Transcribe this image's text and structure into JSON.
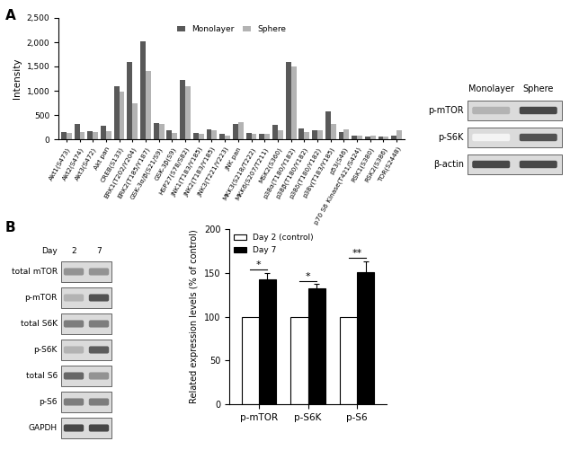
{
  "panel_labels": [
    "A",
    "B"
  ],
  "chart_data": [
    {
      "type": "bar",
      "y_label": "Intensity",
      "categories": [
        "Akt1(S473)",
        "Akt2(S474)",
        "Akt3(S472)",
        "Akt pan",
        "CREB(S133)",
        "ERK1(T202/Y204)",
        "ERK2(T185/Y187)",
        "GSK-3α/β(S21/S9)",
        "GSK-3β(S9)",
        "HSP27(S78/S82)",
        "JNK1(T183/Y185)",
        "JNK2(T183/Y185)",
        "JNK3(T221/Y223)",
        "JNK pan",
        "MKK3(S218/T222)",
        "MKK6(S207/T211)",
        "MSK2(S360)",
        "p38α(T180/Y182)",
        "p38β(T180/Y182)",
        "p38δ(T180/Y182)",
        "p38γ(T183/Y185)",
        "p53(S46)",
        "p70 S6 Kinase(T421/S424)",
        "RSK1(S380)",
        "RSK2(S386)",
        "TOR(S2448)"
      ],
      "series": [
        {
          "name": "Monolayer",
          "color": "#595959",
          "values": [
            150,
            320,
            170,
            280,
            1100,
            1600,
            2010,
            330,
            190,
            1230,
            130,
            200,
            120,
            320,
            130,
            120,
            290,
            1600,
            220,
            190,
            570,
            150,
            80,
            60,
            60,
            80
          ]
        },
        {
          "name": "Sphere",
          "color": "#b3b3b3",
          "values": [
            130,
            150,
            150,
            170,
            980,
            740,
            1410,
            310,
            130,
            1090,
            120,
            180,
            80,
            350,
            110,
            110,
            180,
            1500,
            150,
            190,
            310,
            200,
            80,
            70,
            60,
            180
          ]
        }
      ],
      "ylim": [
        0,
        2500
      ],
      "yticks": [
        0,
        500,
        {
          "value": 1000,
          "label": "1,000"
        },
        {
          "value": 1500,
          "label": "1,500"
        },
        {
          "value": 2000,
          "label": "2,000"
        },
        {
          "value": 2500,
          "label": "2,500"
        }
      ],
      "legend": "upper center"
    },
    {
      "type": "bar",
      "y_label": "Related expression levels (% of control)",
      "categories": [
        "p-mTOR",
        "p-S6K",
        "p-S6"
      ],
      "series": [
        {
          "name": "Day 2 (control)",
          "color": "#ffffff",
          "values": [
            100,
            100,
            100
          ]
        },
        {
          "name": "Day 7",
          "color": "#000000",
          "values": [
            143,
            132,
            151
          ],
          "errors": [
            7,
            5,
            12
          ]
        }
      ],
      "significance": [
        "*",
        "*",
        "**"
      ],
      "ylim": [
        0,
        200
      ],
      "yticks": [
        0,
        50,
        100,
        150,
        200
      ],
      "legend": "upper left"
    }
  ],
  "blots": [
    {
      "column_labels": [
        "Monolayer",
        "Sphere"
      ],
      "row_labels": [
        "p-mTOR",
        "p-S6K",
        "β-actin"
      ]
    },
    {
      "header": "Day",
      "column_labels": [
        "2",
        "7"
      ],
      "row_labels": [
        "total mTOR",
        "p-mTOR",
        "total S6K",
        "p-S6K",
        "total S6",
        "p-S6",
        "GAPDH"
      ]
    }
  ]
}
